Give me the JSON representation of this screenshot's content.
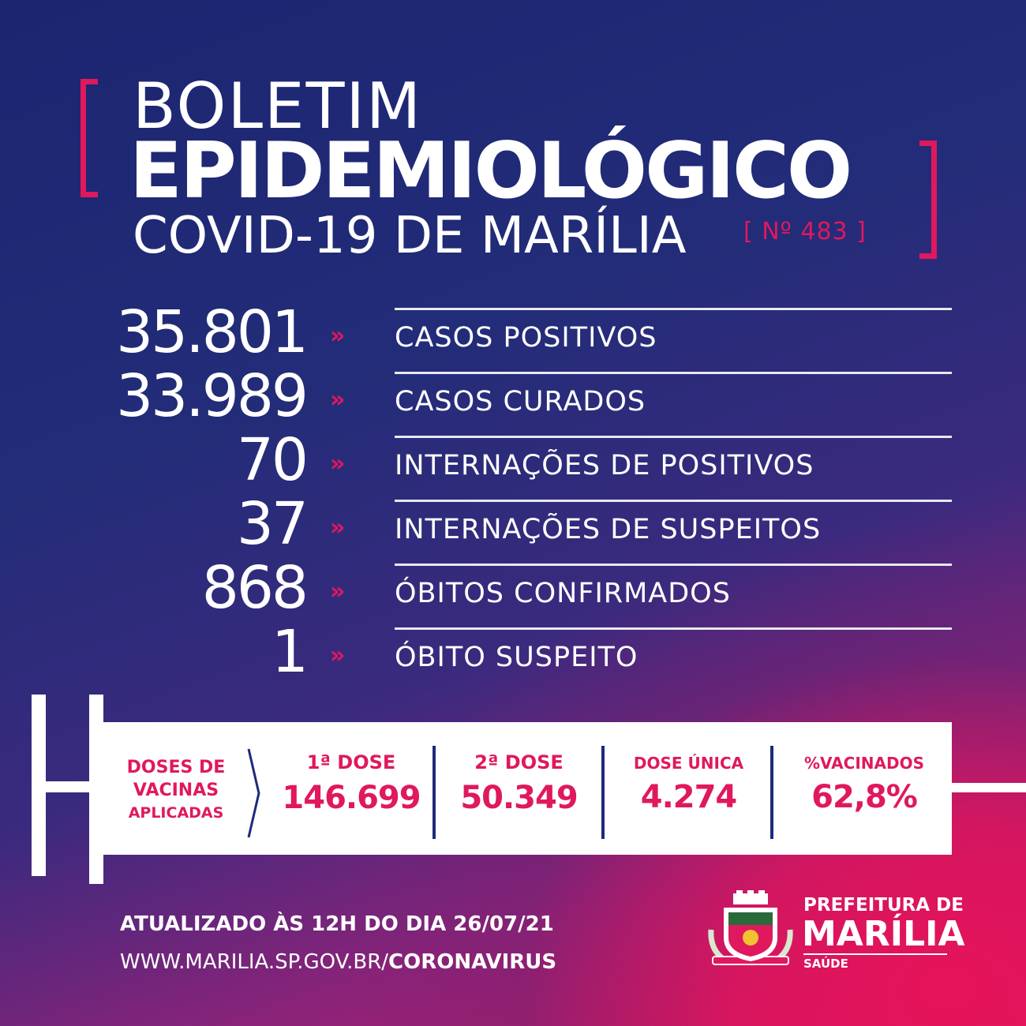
{
  "header": {
    "title_line1": "BOLETIM",
    "title_line2": "EPIDEMIOLÓGICO",
    "title_line3": "COVID-19 DE MARÍLIA",
    "edition": "[ Nº 483 ]"
  },
  "stats": [
    {
      "value": "35.801",
      "label": "CASOS POSITIVOS"
    },
    {
      "value": "33.989",
      "label": "CASOS CURADOS"
    },
    {
      "value": "70",
      "label": "INTERNAÇÕES DE POSITIVOS"
    },
    {
      "value": "37",
      "label": "INTERNAÇÕES DE SUSPEITOS"
    },
    {
      "value": "868",
      "label": "ÓBITOS CONFIRMADOS"
    },
    {
      "value": "1",
      "label": "ÓBITO SUSPEITO"
    }
  ],
  "arrow_glyph": "»",
  "vaccines": {
    "title_line1": "DOSES DE",
    "title_line2": "VACINAS",
    "title_line3": "APLICADAS",
    "columns": [
      {
        "label": "1ª DOSE",
        "value": "146.699"
      },
      {
        "label": "2ª DOSE",
        "value": "50.349"
      },
      {
        "label": "DOSE ÚNICA",
        "value": "4.274"
      },
      {
        "label": "%VACINADOS",
        "value": "62,8%"
      }
    ]
  },
  "footer": {
    "updated": "ATUALIZADO ÀS 12H DO DIA 26/07/21",
    "url_prefix": "WWW.MARILIA.SP.GOV.BR/",
    "url_suffix": "CORONAVIRUS"
  },
  "organization": {
    "line1": "PREFEITURA DE",
    "line2": "MARÍLIA",
    "line3": "SAÚDE",
    "logo_icon": "city-crest-icon"
  },
  "colors": {
    "accent": "#e0185e",
    "navy": "#1e2a7a",
    "white": "#ffffff"
  }
}
